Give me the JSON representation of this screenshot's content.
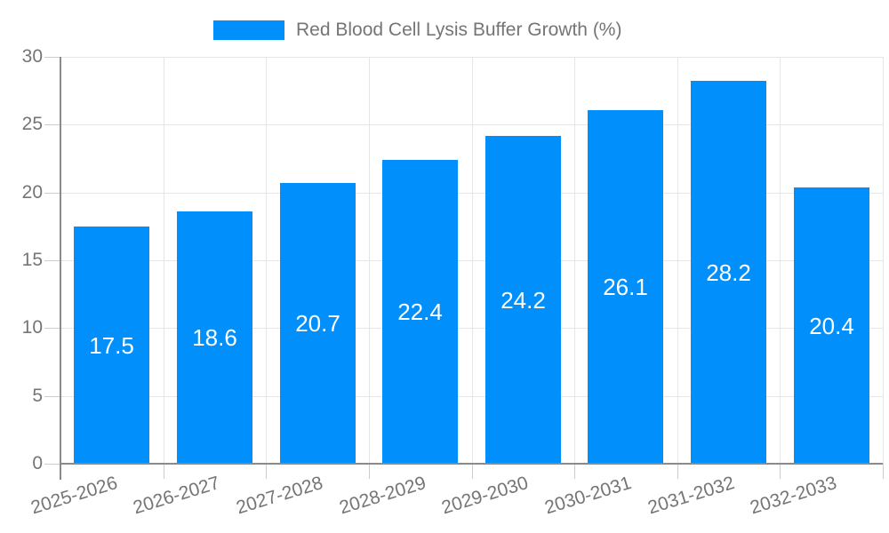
{
  "legend": {
    "label": "Red Blood Cell Lysis Buffer Growth (%)"
  },
  "chart_data": {
    "type": "bar",
    "title": "Red Blood Cell Lysis Buffer Growth (%)",
    "series_name": "Red Blood Cell Lysis Buffer Growth (%)",
    "categories": [
      "2025-2026",
      "2026-2027",
      "2027-2028",
      "2028-2029",
      "2029-2030",
      "2030-2031",
      "2031-2032",
      "2032-2033"
    ],
    "values": [
      17.5,
      18.6,
      20.7,
      22.4,
      24.2,
      26.1,
      28.2,
      20.4
    ],
    "value_labels": [
      "17.5",
      "18.6",
      "20.7",
      "22.4",
      "24.2",
      "26.1",
      "28.2",
      "20.4"
    ],
    "xlabel": "",
    "ylabel": "",
    "ylim": [
      0,
      30
    ],
    "yticks": [
      0,
      5,
      10,
      15,
      20,
      25,
      30
    ],
    "grid": true,
    "legend_position": "top",
    "colors": {
      "bar": "#008ffb",
      "value_label": "#ffffff",
      "tick_label": "#757575",
      "grid_line": "#e6e6e6",
      "minor_tick": "#cccccc",
      "axis_line": "#8a8a8a"
    }
  }
}
